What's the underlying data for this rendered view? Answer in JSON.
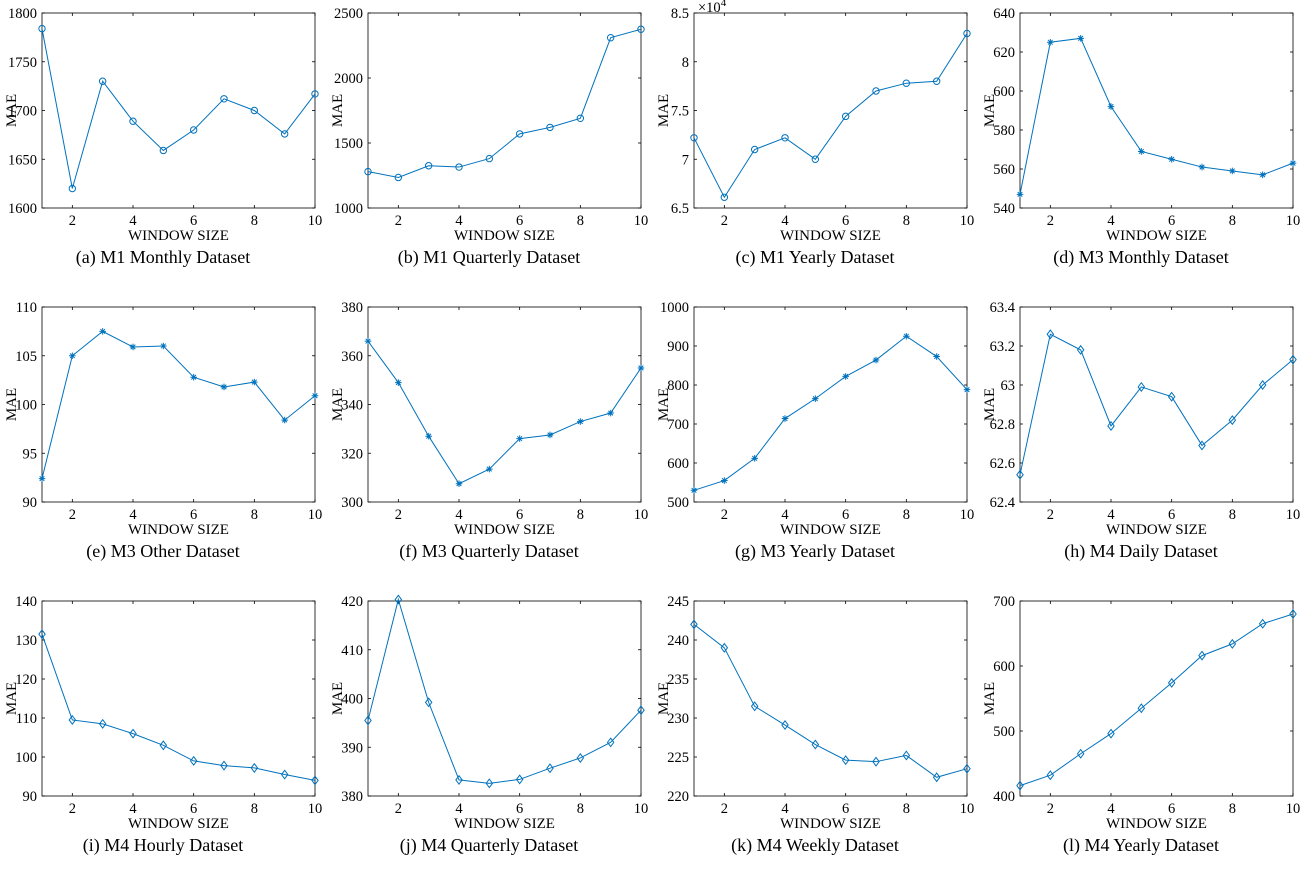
{
  "figure": {
    "series_color": "#0072BD"
  },
  "chart_data": [
    {
      "caption": "(a) M1 Monthly Dataset",
      "type": "line",
      "marker": "circle",
      "xlabel": "WINDOW SIZE",
      "ylabel": "MAE",
      "x": [
        1,
        2,
        3,
        4,
        5,
        6,
        7,
        8,
        9,
        10
      ],
      "values": [
        1784,
        1620,
        1730,
        1689,
        1659,
        1680,
        1712,
        1700,
        1676,
        1717
      ],
      "xlim": [
        1,
        10
      ],
      "ylim": [
        1600,
        1800
      ],
      "xticks": [
        2,
        4,
        6,
        8,
        10
      ],
      "yticks": [
        1600,
        1650,
        1700,
        1750,
        1800
      ],
      "ytick_labels": [
        "1600",
        "1650",
        "1700",
        "1750",
        "1800"
      ],
      "grid": false
    },
    {
      "caption": "(b) M1 Quarterly Dataset",
      "type": "line",
      "marker": "circle",
      "xlabel": "WINDOW SIZE",
      "ylabel": "MAE",
      "x": [
        1,
        2,
        3,
        4,
        5,
        6,
        7,
        8,
        9,
        10
      ],
      "values": [
        1280,
        1235,
        1325,
        1315,
        1380,
        1570,
        1620,
        1690,
        2310,
        2375
      ],
      "xlim": [
        1,
        10
      ],
      "ylim": [
        1000,
        2500
      ],
      "xticks": [
        2,
        4,
        6,
        8,
        10
      ],
      "yticks": [
        1000,
        1500,
        2000,
        2500
      ],
      "ytick_labels": [
        "1000",
        "1500",
        "2000",
        "2500"
      ],
      "grid": false
    },
    {
      "caption": "(c) M1 Yearly Dataset",
      "type": "line",
      "marker": "circle",
      "xlabel": "WINDOW SIZE",
      "ylabel": "MAE",
      "exponent_label": "×10",
      "exponent_power": "4",
      "x": [
        1,
        2,
        3,
        4,
        5,
        6,
        7,
        8,
        9,
        10
      ],
      "values": [
        72200,
        66100,
        71000,
        72200,
        70000,
        74400,
        77000,
        77800,
        78000,
        82900
      ],
      "xlim": [
        1,
        10
      ],
      "ylim": [
        65000,
        85000
      ],
      "xticks": [
        2,
        4,
        6,
        8,
        10
      ],
      "yticks": [
        65000,
        70000,
        75000,
        80000,
        85000
      ],
      "ytick_labels": [
        "6.5",
        "7",
        "7.5",
        "8",
        "8.5"
      ],
      "grid": false
    },
    {
      "caption": "(d) M3 Monthly Dataset",
      "type": "line",
      "marker": "asterisk",
      "xlabel": "WINDOW SIZE",
      "ylabel": "MAE",
      "x": [
        1,
        2,
        3,
        4,
        5,
        6,
        7,
        8,
        9,
        10
      ],
      "values": [
        547,
        625,
        627,
        592,
        569,
        565,
        561,
        559,
        557,
        563
      ],
      "xlim": [
        1,
        10
      ],
      "ylim": [
        540,
        640
      ],
      "xticks": [
        2,
        4,
        6,
        8,
        10
      ],
      "yticks": [
        540,
        560,
        580,
        600,
        620,
        640
      ],
      "ytick_labels": [
        "540",
        "560",
        "580",
        "600",
        "620",
        "640"
      ],
      "grid": false
    },
    {
      "caption": "(e) M3 Other Dataset",
      "type": "line",
      "marker": "asterisk",
      "xlabel": "WINDOW SIZE",
      "ylabel": "MAE",
      "x": [
        1,
        2,
        3,
        4,
        5,
        6,
        7,
        8,
        9,
        10
      ],
      "values": [
        92.4,
        105.0,
        107.5,
        105.9,
        106.0,
        102.8,
        101.8,
        102.3,
        98.4,
        100.9
      ],
      "xlim": [
        1,
        10
      ],
      "ylim": [
        90,
        110
      ],
      "xticks": [
        2,
        4,
        6,
        8,
        10
      ],
      "yticks": [
        90,
        95,
        100,
        105,
        110
      ],
      "ytick_labels": [
        "90",
        "95",
        "100",
        "105",
        "110"
      ],
      "grid": false
    },
    {
      "caption": "(f) M3 Quarterly Dataset",
      "type": "line",
      "marker": "asterisk",
      "xlabel": "WINDOW SIZE",
      "ylabel": "MAE",
      "x": [
        1,
        2,
        3,
        4,
        5,
        6,
        7,
        8,
        9,
        10
      ],
      "values": [
        366,
        349,
        327,
        307.5,
        313.5,
        326,
        327.5,
        333,
        336.5,
        355
      ],
      "xlim": [
        1,
        10
      ],
      "ylim": [
        300,
        380
      ],
      "xticks": [
        2,
        4,
        6,
        8,
        10
      ],
      "yticks": [
        300,
        320,
        340,
        360,
        380
      ],
      "ytick_labels": [
        "300",
        "320",
        "340",
        "360",
        "380"
      ],
      "grid": false
    },
    {
      "caption": "(g) M3 Yearly Dataset",
      "type": "line",
      "marker": "asterisk",
      "xlabel": "WINDOW SIZE",
      "ylabel": "MAE",
      "x": [
        1,
        2,
        3,
        4,
        5,
        6,
        7,
        8,
        9,
        10
      ],
      "values": [
        530,
        555,
        612,
        714,
        765,
        822,
        864,
        925,
        873,
        788
      ],
      "xlim": [
        1,
        10
      ],
      "ylim": [
        500,
        1000
      ],
      "xticks": [
        2,
        4,
        6,
        8,
        10
      ],
      "yticks": [
        500,
        600,
        700,
        800,
        900,
        1000
      ],
      "ytick_labels": [
        "500",
        "600",
        "700",
        "800",
        "900",
        "1000"
      ],
      "grid": false
    },
    {
      "caption": "(h) M4 Daily Dataset",
      "type": "line",
      "marker": "diamond",
      "xlabel": "WINDOW SIZE",
      "ylabel": "MAE",
      "x": [
        1,
        2,
        3,
        4,
        5,
        6,
        7,
        8,
        9,
        10
      ],
      "values": [
        62.54,
        63.26,
        63.18,
        62.79,
        62.99,
        62.94,
        62.69,
        62.82,
        63.0,
        63.13
      ],
      "xlim": [
        1,
        10
      ],
      "ylim": [
        62.4,
        63.4
      ],
      "xticks": [
        2,
        4,
        6,
        8,
        10
      ],
      "yticks": [
        62.4,
        62.6,
        62.8,
        63,
        63.2,
        63.4
      ],
      "ytick_labels": [
        "62.4",
        "62.6",
        "62.8",
        "63",
        "63.2",
        "63.4"
      ],
      "grid": false
    },
    {
      "caption": "(i) M4 Hourly Dataset",
      "type": "line",
      "marker": "diamond",
      "xlabel": "WINDOW SIZE",
      "ylabel": "MAE",
      "x": [
        1,
        2,
        3,
        4,
        5,
        6,
        7,
        8,
        9,
        10
      ],
      "values": [
        131.5,
        109.5,
        108.5,
        106,
        103,
        99,
        97.8,
        97.2,
        95.5,
        94
      ],
      "xlim": [
        1,
        10
      ],
      "ylim": [
        90,
        140
      ],
      "xticks": [
        2,
        4,
        6,
        8,
        10
      ],
      "yticks": [
        90,
        100,
        110,
        120,
        130,
        140
      ],
      "ytick_labels": [
        "90",
        "100",
        "110",
        "120",
        "130",
        "140"
      ],
      "grid": false
    },
    {
      "caption": "(j) M4 Quarterly Dataset",
      "type": "line",
      "marker": "diamond",
      "xlabel": "WINDOW SIZE",
      "ylabel": "MAE",
      "x": [
        1,
        2,
        3,
        4,
        5,
        6,
        7,
        8,
        9,
        10
      ],
      "values": [
        395.5,
        420.3,
        399.2,
        383.3,
        382.6,
        383.4,
        385.7,
        387.8,
        391.0,
        397.6
      ],
      "xlim": [
        1,
        10
      ],
      "ylim": [
        380,
        420
      ],
      "xticks": [
        2,
        4,
        6,
        8,
        10
      ],
      "yticks": [
        380,
        390,
        400,
        410,
        420
      ],
      "ytick_labels": [
        "380",
        "390",
        "400",
        "410",
        "420"
      ],
      "grid": false
    },
    {
      "caption": "(k) M4 Weekly Dataset",
      "type": "line",
      "marker": "diamond",
      "xlabel": "WINDOW SIZE",
      "ylabel": "MAE",
      "x": [
        1,
        2,
        3,
        4,
        5,
        6,
        7,
        8,
        9,
        10
      ],
      "values": [
        242,
        239,
        231.5,
        229.1,
        226.6,
        224.6,
        224.4,
        225.2,
        222.4,
        223.5
      ],
      "xlim": [
        1,
        10
      ],
      "ylim": [
        220,
        245
      ],
      "xticks": [
        2,
        4,
        6,
        8,
        10
      ],
      "yticks": [
        220,
        225,
        230,
        235,
        240,
        245
      ],
      "ytick_labels": [
        "220",
        "225",
        "230",
        "235",
        "240",
        "245"
      ],
      "grid": false
    },
    {
      "caption": "(l) M4 Yearly Dataset",
      "type": "line",
      "marker": "diamond",
      "xlabel": "WINDOW SIZE",
      "ylabel": "MAE",
      "x": [
        1,
        2,
        3,
        4,
        5,
        6,
        7,
        8,
        9,
        10
      ],
      "values": [
        416,
        432,
        465,
        496,
        535,
        574,
        616,
        634,
        665,
        680
      ],
      "xlim": [
        1,
        10
      ],
      "ylim": [
        400,
        700
      ],
      "xticks": [
        2,
        4,
        6,
        8,
        10
      ],
      "yticks": [
        400,
        500,
        600,
        700
      ],
      "ytick_labels": [
        "400",
        "500",
        "600",
        "700"
      ],
      "grid": false
    }
  ]
}
